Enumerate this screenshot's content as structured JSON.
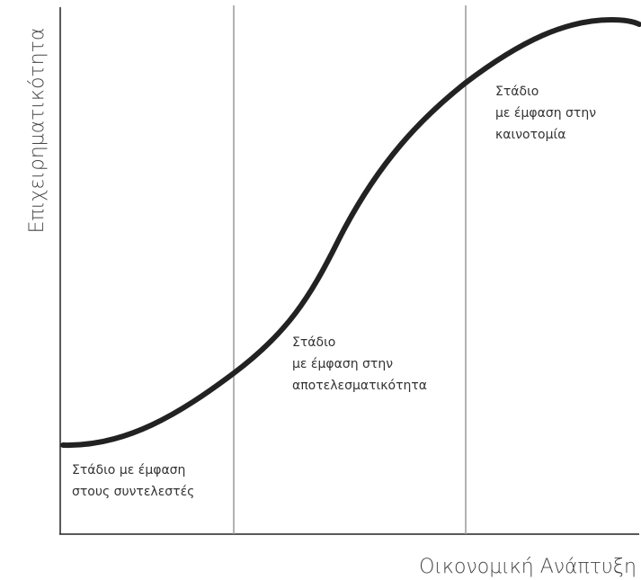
{
  "y_axis_label": "Επιχειρηματικότητα",
  "x_axis_label": "Οικονομική Ανάπτυξη",
  "stages": [
    {
      "lines": [
        "Στάδιο με έμφαση",
        "στους συντελεστές"
      ]
    },
    {
      "lines": [
        "Στάδιο",
        "με έμφαση στην",
        "αποτελεσματικότητα"
      ]
    },
    {
      "lines": [
        "Στάδιο",
        "με έμφαση στην",
        "καινοτομία"
      ]
    }
  ]
}
